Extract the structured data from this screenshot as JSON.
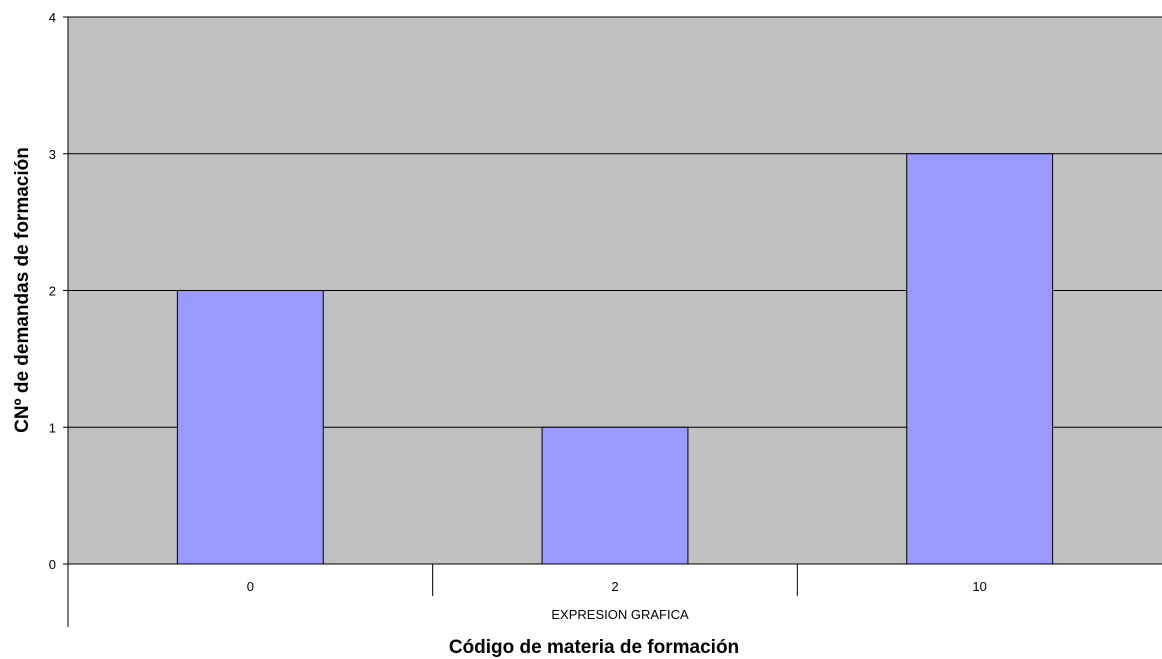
{
  "chart_data": {
    "type": "bar",
    "categories": [
      "0",
      "2",
      "10"
    ],
    "group_label": "EXPRESION GRAFICA",
    "values": [
      2,
      1,
      3
    ],
    "xlabel": "Código de materia de formación",
    "ylabel": "CNº de demandas de formación",
    "ylim": [
      0,
      4
    ],
    "yticks": [
      0,
      1,
      2,
      3,
      4
    ],
    "grid": true,
    "legend": "none",
    "colors": {
      "plot_background": "#c0c0c0",
      "bar_fill": "#9999ff",
      "bar_stroke": "#000000",
      "grid": "#000000"
    }
  }
}
